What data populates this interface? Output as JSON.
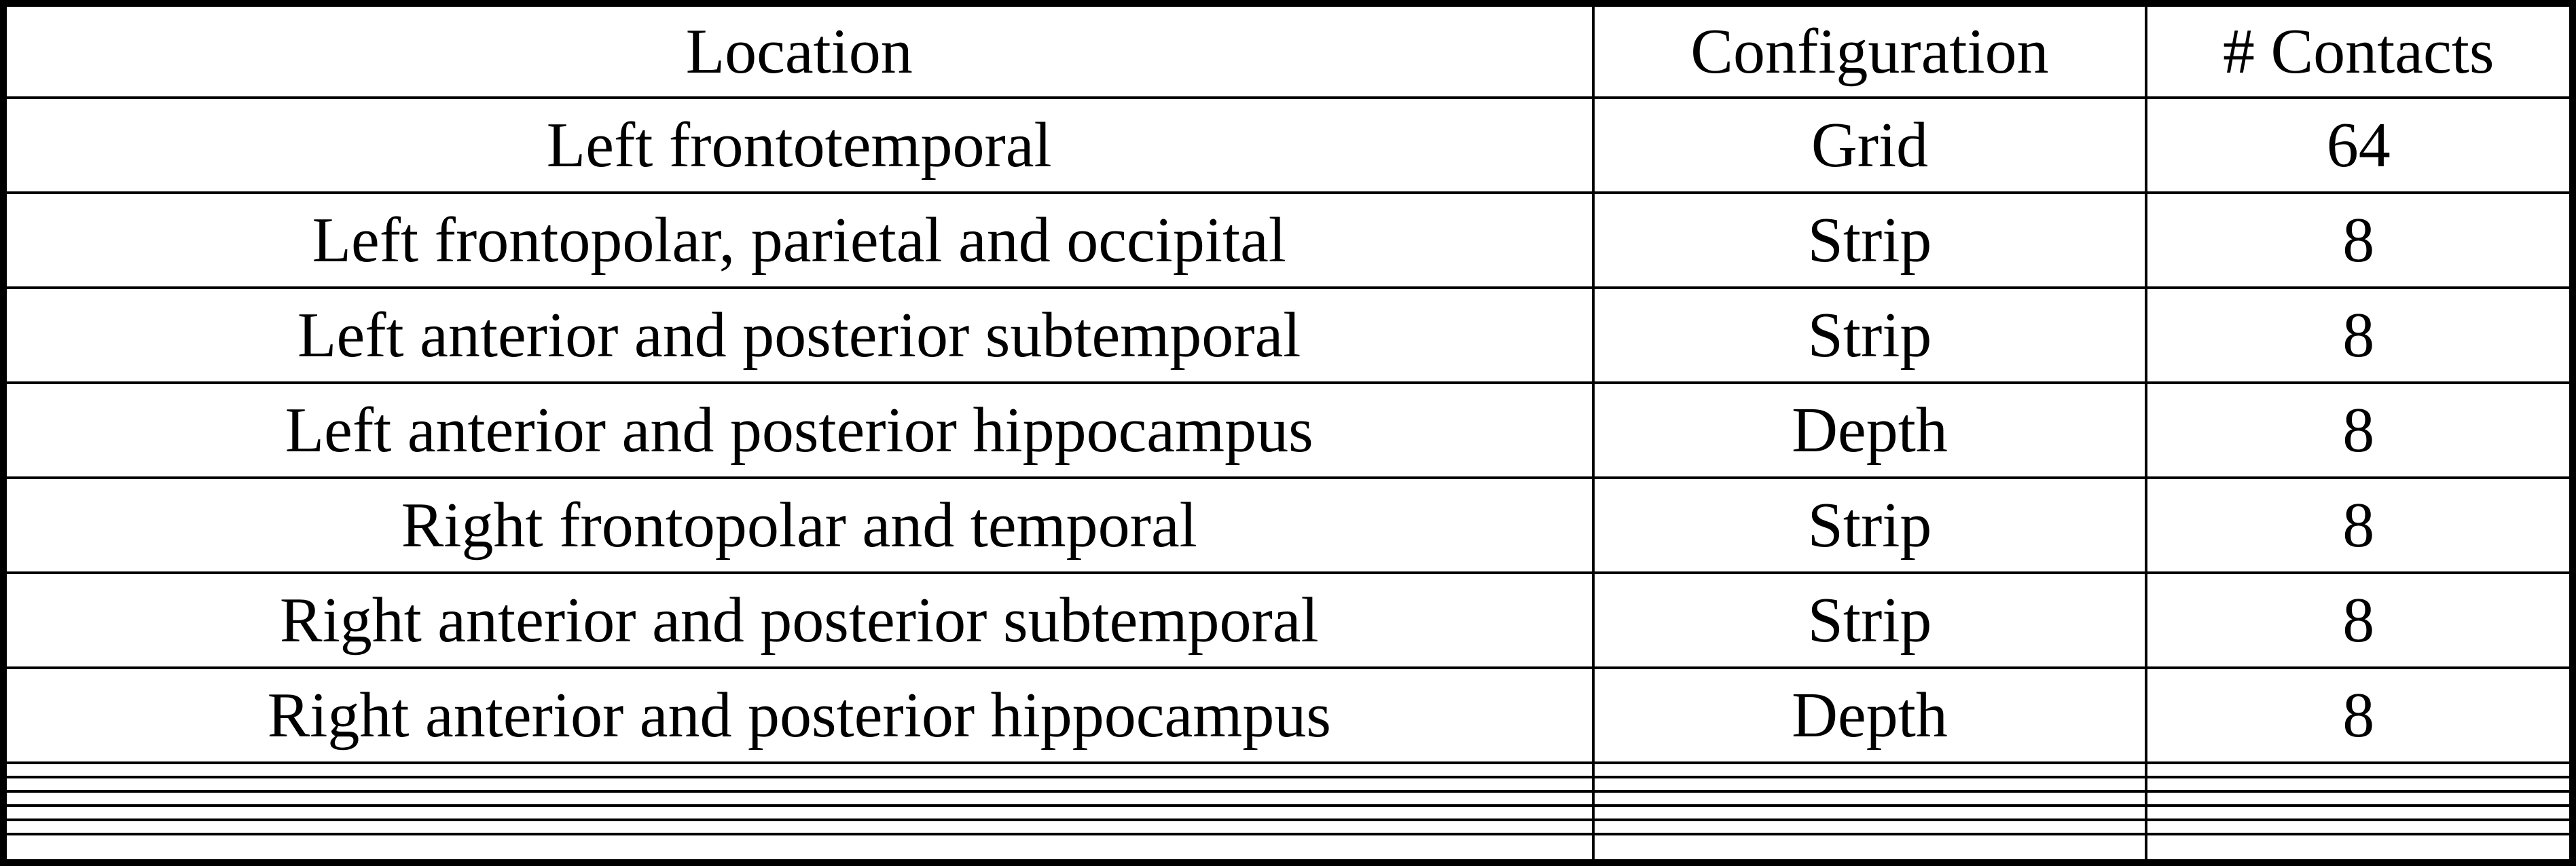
{
  "table": {
    "columns": [
      "Location",
      "Configuration",
      "# Contacts"
    ],
    "rows": [
      {
        "cells": [
          "Left frontotemporal",
          "Grid",
          "64"
        ]
      },
      {
        "cells": [
          "Left frontopolar, parietal and occipital",
          "Strip",
          "8"
        ]
      },
      {
        "cells": [
          "Left anterior and posterior subtemporal",
          "Strip",
          "8"
        ]
      },
      {
        "cells": [
          "Left anterior and posterior hippocampus",
          "Depth",
          "8"
        ]
      },
      {
        "cells": [
          "Right frontopolar and temporal",
          "Strip",
          "8"
        ]
      },
      {
        "cells": [
          "Right anterior and posterior subtemporal",
          "Strip",
          "8"
        ]
      },
      {
        "cells": [
          "Right anterior and posterior hippocampus",
          "Depth",
          "8"
        ]
      }
    ],
    "empty_trailing_rows": 6
  },
  "chart_data": {
    "type": "table",
    "columns": [
      "Location",
      "Configuration",
      "# Contacts"
    ],
    "rows": [
      [
        "Left frontotemporal",
        "Grid",
        64
      ],
      [
        "Left frontopolar, parietal and occipital",
        "Strip",
        8
      ],
      [
        "Left anterior and posterior subtemporal",
        "Strip",
        8
      ],
      [
        "Left anterior and posterior hippocampus",
        "Depth",
        8
      ],
      [
        "Right frontopolar and temporal",
        "Strip",
        8
      ],
      [
        "Right anterior and posterior subtemporal",
        "Strip",
        8
      ],
      [
        "Right anterior and posterior hippocampus",
        "Depth",
        8
      ]
    ]
  },
  "colors": {
    "border": "#000000",
    "text": "#000000",
    "background": "#ffffff"
  }
}
